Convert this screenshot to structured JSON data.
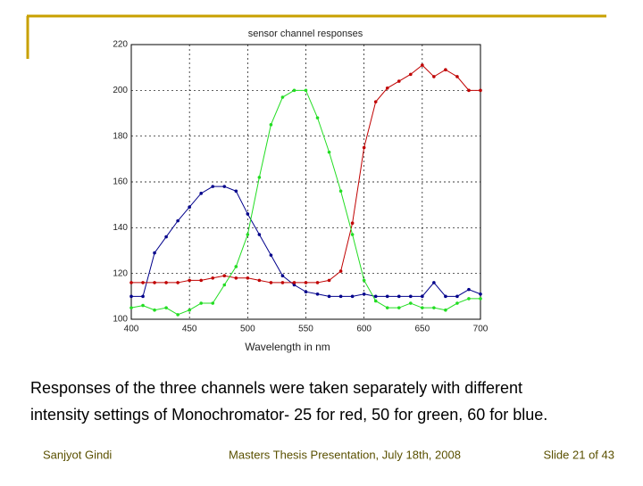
{
  "chart_data": {
    "type": "line",
    "title": "sensor channel responses",
    "x_label": "Wavelength in nm",
    "x": [
      400,
      410,
      420,
      430,
      440,
      450,
      460,
      470,
      480,
      490,
      500,
      510,
      520,
      530,
      540,
      550,
      560,
      570,
      580,
      590,
      600,
      610,
      620,
      630,
      640,
      650,
      660,
      670,
      680,
      690,
      700
    ],
    "series": [
      {
        "name": "blue",
        "color": "#00008b",
        "values": [
          110,
          110,
          129,
          136,
          143,
          149,
          155,
          158,
          158,
          156,
          146,
          137,
          128,
          119,
          115,
          112,
          111,
          110,
          110,
          110,
          111,
          110,
          110,
          110,
          110,
          110,
          116,
          110,
          110,
          113,
          111
        ]
      },
      {
        "name": "red",
        "color": "#c00000",
        "values": [
          116,
          116,
          116,
          116,
          116,
          117,
          117,
          118,
          119,
          118,
          118,
          117,
          116,
          116,
          116,
          116,
          116,
          117,
          121,
          142,
          175,
          195,
          201,
          204,
          207,
          211,
          206,
          209,
          206,
          200,
          200
        ]
      },
      {
        "name": "green",
        "color": "#22dd22",
        "values": [
          105,
          106,
          104,
          105,
          102,
          104,
          107,
          107,
          115,
          123,
          137,
          162,
          185,
          197,
          200,
          200,
          188,
          173,
          156,
          137,
          117,
          108,
          105,
          105,
          107,
          105,
          105,
          104,
          107,
          109,
          109
        ]
      }
    ],
    "xlim": [
      400,
      700
    ],
    "xticks": [
      400,
      450,
      500,
      550,
      600,
      650,
      700
    ],
    "ylim": [
      100,
      220
    ],
    "yticks": [
      100,
      120,
      140,
      160,
      180,
      200,
      220
    ],
    "grid": true
  },
  "caption": [
    "Responses of the three channels were taken separately with different",
    "intensity settings of Monochromator- 25 for red, 50 for green, 60 for blue."
  ],
  "footer": {
    "author": "Sanjyot Gindi",
    "event": "Masters Thesis Presentation, July 18th, 2008",
    "slide": "Slide 21 of 43"
  }
}
